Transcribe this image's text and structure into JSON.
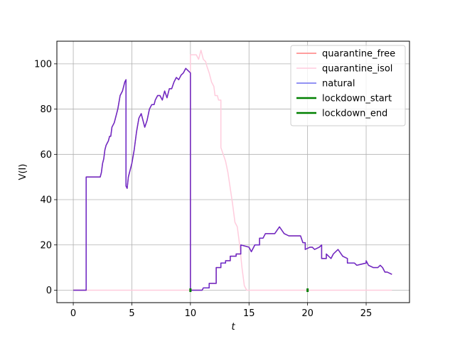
{
  "chart_data": {
    "type": "line",
    "xlabel": "t",
    "ylabel": "V(I)",
    "xlim": [
      -1.4,
      28.7
    ],
    "ylim": [
      -5.5,
      110
    ],
    "xticks": [
      0,
      5,
      10,
      15,
      20,
      25
    ],
    "yticks": [
      0,
      20,
      40,
      60,
      80,
      100
    ],
    "grid": true,
    "legend_position": "top-right",
    "series": [
      {
        "name": "quarantine_free",
        "color": "#ff7f7f",
        "points": [
          [
            0,
            0
          ],
          [
            1.1,
            0
          ],
          [
            1.1,
            50
          ],
          [
            2.3,
            50
          ],
          [
            2.4,
            52
          ],
          [
            2.5,
            56
          ],
          [
            2.6,
            58
          ],
          [
            2.7,
            62
          ],
          [
            2.8,
            64
          ],
          [
            2.9,
            65
          ],
          [
            3.0,
            66
          ],
          [
            3.1,
            68
          ],
          [
            3.2,
            68
          ],
          [
            3.3,
            72
          ],
          [
            3.5,
            74
          ],
          [
            3.6,
            76
          ],
          [
            3.8,
            80
          ],
          [
            4.0,
            86
          ],
          [
            4.2,
            88
          ],
          [
            4.4,
            92
          ],
          [
            4.5,
            93
          ],
          [
            4.5,
            46
          ],
          [
            4.6,
            45
          ],
          [
            4.7,
            50
          ],
          [
            5.0,
            56
          ],
          [
            5.2,
            62
          ],
          [
            5.4,
            70
          ],
          [
            5.6,
            76
          ],
          [
            5.8,
            78
          ],
          [
            6.0,
            74
          ],
          [
            6.1,
            72
          ],
          [
            6.3,
            75
          ],
          [
            6.5,
            80
          ],
          [
            6.7,
            82
          ],
          [
            6.9,
            82
          ],
          [
            7.0,
            84
          ],
          [
            7.2,
            86
          ],
          [
            7.4,
            86
          ],
          [
            7.6,
            84
          ],
          [
            7.8,
            88
          ],
          [
            8.0,
            85
          ],
          [
            8.2,
            89
          ],
          [
            8.4,
            89
          ],
          [
            8.6,
            92
          ],
          [
            8.8,
            94
          ],
          [
            9.0,
            93
          ],
          [
            9.2,
            95
          ],
          [
            9.4,
            96
          ],
          [
            9.6,
            98
          ],
          [
            9.8,
            97
          ],
          [
            10.0,
            96
          ],
          [
            10.0,
            0
          ],
          [
            11.0,
            0
          ],
          [
            11.1,
            1
          ],
          [
            11.6,
            1
          ],
          [
            11.6,
            3
          ],
          [
            12.2,
            3
          ],
          [
            12.2,
            10
          ],
          [
            12.6,
            10
          ],
          [
            12.6,
            12
          ],
          [
            13.0,
            12
          ],
          [
            13.0,
            13
          ],
          [
            13.4,
            13
          ],
          [
            13.4,
            15
          ],
          [
            13.9,
            15
          ],
          [
            13.9,
            16
          ],
          [
            14.3,
            16
          ],
          [
            14.3,
            20
          ],
          [
            15.0,
            19
          ],
          [
            15.2,
            17
          ],
          [
            15.5,
            20
          ],
          [
            15.9,
            20
          ],
          [
            15.9,
            23
          ],
          [
            16.2,
            23
          ],
          [
            16.4,
            25
          ],
          [
            17.2,
            25
          ],
          [
            17.6,
            28
          ],
          [
            18.0,
            25
          ],
          [
            18.4,
            24
          ],
          [
            19.4,
            24
          ],
          [
            19.6,
            21
          ],
          [
            19.8,
            21
          ],
          [
            19.8,
            18
          ],
          [
            20.2,
            19
          ],
          [
            20.4,
            19
          ],
          [
            20.6,
            18
          ],
          [
            21.0,
            19
          ],
          [
            21.2,
            20
          ],
          [
            21.2,
            14
          ],
          [
            21.6,
            14
          ],
          [
            21.6,
            16
          ],
          [
            22.0,
            14
          ],
          [
            22.2,
            16
          ],
          [
            22.6,
            18
          ],
          [
            23.0,
            15
          ],
          [
            23.4,
            14
          ],
          [
            23.4,
            12
          ],
          [
            24.0,
            12
          ],
          [
            24.2,
            11
          ],
          [
            25.0,
            12
          ],
          [
            25.0,
            13
          ],
          [
            25.2,
            11
          ],
          [
            25.6,
            10
          ],
          [
            26.0,
            10
          ],
          [
            26.2,
            11
          ],
          [
            26.4,
            10
          ],
          [
            26.6,
            8
          ],
          [
            26.8,
            8
          ],
          [
            27.2,
            7
          ]
        ]
      },
      {
        "name": "quarantine_isol",
        "color": "#ffccdd",
        "points": [
          [
            0,
            0
          ],
          [
            10.0,
            0
          ],
          [
            10.0,
            104
          ],
          [
            10.5,
            104
          ],
          [
            10.7,
            102
          ],
          [
            10.9,
            106
          ],
          [
            11.1,
            102
          ],
          [
            11.3,
            101
          ],
          [
            11.4,
            99
          ],
          [
            11.6,
            96
          ],
          [
            11.8,
            92
          ],
          [
            12.0,
            90
          ],
          [
            12.1,
            86
          ],
          [
            12.3,
            86
          ],
          [
            12.4,
            84
          ],
          [
            12.6,
            84
          ],
          [
            12.6,
            63
          ],
          [
            12.8,
            60
          ],
          [
            13.0,
            57
          ],
          [
            13.2,
            52
          ],
          [
            13.4,
            45
          ],
          [
            13.6,
            38
          ],
          [
            13.8,
            30
          ],
          [
            14.0,
            28
          ],
          [
            14.2,
            20
          ],
          [
            14.4,
            10
          ],
          [
            14.6,
            2
          ],
          [
            14.8,
            0
          ],
          [
            27.2,
            0
          ]
        ]
      },
      {
        "name": "natural",
        "color": "#6e6ef0",
        "points": [
          [
            0,
            0
          ],
          [
            1.1,
            0
          ],
          [
            1.1,
            50
          ],
          [
            2.3,
            50
          ],
          [
            2.4,
            52
          ],
          [
            2.5,
            56
          ],
          [
            2.6,
            58
          ],
          [
            2.7,
            62
          ],
          [
            2.8,
            64
          ],
          [
            2.9,
            65
          ],
          [
            3.0,
            66
          ],
          [
            3.1,
            68
          ],
          [
            3.2,
            68
          ],
          [
            3.3,
            72
          ],
          [
            3.5,
            74
          ],
          [
            3.6,
            76
          ],
          [
            3.8,
            80
          ],
          [
            4.0,
            86
          ],
          [
            4.2,
            88
          ],
          [
            4.4,
            92
          ],
          [
            4.5,
            93
          ],
          [
            4.5,
            46
          ],
          [
            4.6,
            45
          ],
          [
            4.7,
            50
          ],
          [
            5.0,
            56
          ],
          [
            5.2,
            62
          ],
          [
            5.4,
            70
          ],
          [
            5.6,
            76
          ],
          [
            5.8,
            78
          ],
          [
            6.0,
            74
          ],
          [
            6.1,
            72
          ],
          [
            6.3,
            75
          ],
          [
            6.5,
            80
          ],
          [
            6.7,
            82
          ],
          [
            6.9,
            82
          ],
          [
            7.0,
            84
          ],
          [
            7.2,
            86
          ],
          [
            7.4,
            86
          ],
          [
            7.6,
            84
          ],
          [
            7.8,
            88
          ],
          [
            8.0,
            85
          ],
          [
            8.2,
            89
          ],
          [
            8.4,
            89
          ],
          [
            8.6,
            92
          ],
          [
            8.8,
            94
          ],
          [
            9.0,
            93
          ],
          [
            9.2,
            95
          ],
          [
            9.4,
            96
          ],
          [
            9.6,
            98
          ],
          [
            9.8,
            97
          ],
          [
            10.0,
            96
          ],
          [
            10.0,
            0
          ],
          [
            11.0,
            0
          ],
          [
            11.1,
            1
          ],
          [
            11.6,
            1
          ],
          [
            11.6,
            3
          ],
          [
            12.2,
            3
          ],
          [
            12.2,
            10
          ],
          [
            12.6,
            10
          ],
          [
            12.6,
            12
          ],
          [
            13.0,
            12
          ],
          [
            13.0,
            13
          ],
          [
            13.4,
            13
          ],
          [
            13.4,
            15
          ],
          [
            13.9,
            15
          ],
          [
            13.9,
            16
          ],
          [
            14.3,
            16
          ],
          [
            14.3,
            20
          ],
          [
            15.0,
            19
          ],
          [
            15.2,
            17
          ],
          [
            15.5,
            20
          ],
          [
            15.9,
            20
          ],
          [
            15.9,
            23
          ],
          [
            16.2,
            23
          ],
          [
            16.4,
            25
          ],
          [
            17.2,
            25
          ],
          [
            17.6,
            28
          ],
          [
            18.0,
            25
          ],
          [
            18.4,
            24
          ],
          [
            19.4,
            24
          ],
          [
            19.6,
            21
          ],
          [
            19.8,
            21
          ],
          [
            19.8,
            18
          ],
          [
            20.2,
            19
          ],
          [
            20.4,
            19
          ],
          [
            20.6,
            18
          ],
          [
            21.0,
            19
          ],
          [
            21.2,
            20
          ],
          [
            21.2,
            14
          ],
          [
            21.6,
            14
          ],
          [
            21.6,
            16
          ],
          [
            22.0,
            14
          ],
          [
            22.2,
            16
          ],
          [
            22.6,
            18
          ],
          [
            23.0,
            15
          ],
          [
            23.4,
            14
          ],
          [
            23.4,
            12
          ],
          [
            24.0,
            12
          ],
          [
            24.2,
            11
          ],
          [
            25.0,
            12
          ],
          [
            25.0,
            13
          ],
          [
            25.2,
            11
          ],
          [
            25.6,
            10
          ],
          [
            26.0,
            10
          ],
          [
            26.2,
            11
          ],
          [
            26.4,
            10
          ],
          [
            26.6,
            8
          ],
          [
            26.8,
            8
          ],
          [
            27.2,
            7
          ]
        ]
      },
      {
        "name": "lockdown_start",
        "color": "#008000",
        "points": [
          [
            10.0,
            -0.8
          ],
          [
            10.0,
            0.8
          ]
        ]
      },
      {
        "name": "lockdown_end",
        "color": "#008000",
        "points": [
          [
            20.0,
            -0.8
          ],
          [
            20.0,
            0.8
          ]
        ]
      }
    ],
    "overlap_color": "#6a28c8",
    "grid_color": "#b0b0b0"
  }
}
